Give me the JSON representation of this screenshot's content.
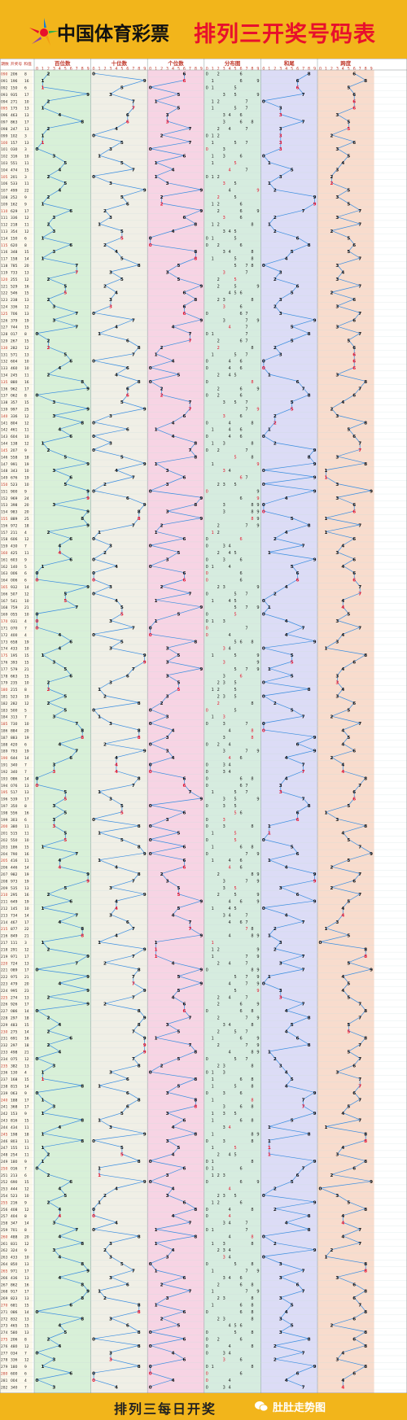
{
  "header": {
    "org_name": "中国体育彩票",
    "title": "排列三开奖号码表"
  },
  "footer": {
    "label": "排列三每日开奖",
    "brand": "肚肚走势图"
  },
  "colors": {
    "background": "#f4b400",
    "title": "#e8102c",
    "line": "#3a8de0",
    "highlight": "#e8102c",
    "panel_bai": "#d8f0d8",
    "panel_shi": "#f0efe6",
    "panel_ge": "#f7d4e4",
    "panel_fenbu": "#d6ecdf",
    "panel_hewei": "#dcdcf6",
    "panel_kuadu": "#f8dccd"
  },
  "icons": {
    "logo": "lottery-star-logo",
    "wechat": "wechat-icon"
  },
  "chart_data": {
    "type": "table",
    "columns": [
      "期数",
      "开奖号",
      "和值"
    ],
    "panels": [
      "百位数",
      "十位数",
      "个位数",
      "分布图",
      "和尾",
      "跨度"
    ],
    "digit_header": [
      "0",
      "1",
      "2",
      "3",
      "4",
      "5",
      "6",
      "7",
      "8",
      "9"
    ],
    "issue_start": 90,
    "rows": [
      [
        "090",
        "206",
        "8"
      ],
      [
        "091",
        "196",
        "16"
      ],
      [
        "092",
        "150",
        "6"
      ],
      [
        "093",
        "935",
        "17"
      ],
      [
        "094",
        "271",
        "10"
      ],
      [
        "095",
        "175",
        "13"
      ],
      [
        "096",
        "463",
        "13"
      ],
      [
        "097",
        "863",
        "17"
      ],
      [
        "098",
        "247",
        "13"
      ],
      [
        "099",
        "102",
        "3"
      ],
      [
        "100",
        "157",
        "13"
      ],
      [
        "101",
        "030",
        "3"
      ],
      [
        "102",
        "316",
        "10"
      ],
      [
        "103",
        "551",
        "11"
      ],
      [
        "104",
        "474",
        "15"
      ],
      [
        "105",
        "201",
        "3"
      ],
      [
        "106",
        "533",
        "11"
      ],
      [
        "107",
        "499",
        "22"
      ],
      [
        "108",
        "252",
        "9"
      ],
      [
        "109",
        "162",
        "9"
      ],
      [
        "110",
        "629",
        "17"
      ],
      [
        "111",
        "336",
        "12"
      ],
      [
        "112",
        "218",
        "11"
      ],
      [
        "113",
        "354",
        "12"
      ],
      [
        "114",
        "150",
        "6"
      ],
      [
        "115",
        "620",
        "8"
      ],
      [
        "116",
        "348",
        "15"
      ],
      [
        "117",
        "158",
        "14"
      ],
      [
        "118",
        "785",
        "20"
      ],
      [
        "119",
        "733",
        "13"
      ],
      [
        "120",
        "255",
        "12"
      ],
      [
        "121",
        "529",
        "16"
      ],
      [
        "122",
        "546",
        "15"
      ],
      [
        "123",
        "238",
        "13"
      ],
      [
        "124",
        "336",
        "12"
      ],
      [
        "125",
        "706",
        "13"
      ],
      [
        "126",
        "379",
        "19"
      ],
      [
        "127",
        "744",
        "15"
      ],
      [
        "128",
        "017",
        "8"
      ],
      [
        "129",
        "267",
        "15"
      ],
      [
        "130",
        "282",
        "12"
      ],
      [
        "131",
        "571",
        "13"
      ],
      [
        "132",
        "604",
        "10"
      ],
      [
        "133",
        "460",
        "10"
      ],
      [
        "134",
        "245",
        "11"
      ],
      [
        "135",
        "880",
        "16"
      ],
      [
        "136",
        "962",
        "17"
      ],
      [
        "137",
        "062",
        "8"
      ],
      [
        "138",
        "357",
        "15"
      ],
      [
        "139",
        "997",
        "25"
      ],
      [
        "140",
        "336",
        "12"
      ],
      [
        "141",
        "804",
        "12"
      ],
      [
        "142",
        "461",
        "11"
      ],
      [
        "143",
        "604",
        "10"
      ],
      [
        "144",
        "138",
        "12"
      ],
      [
        "145",
        "207",
        "9"
      ],
      [
        "146",
        "558",
        "18"
      ],
      [
        "147",
        "991",
        "19"
      ],
      [
        "148",
        "343",
        "10"
      ],
      [
        "149",
        "676",
        "19"
      ],
      [
        "150",
        "523",
        "10"
      ],
      [
        "151",
        "900",
        "9"
      ],
      [
        "152",
        "969",
        "24"
      ],
      [
        "153",
        "398",
        "20"
      ],
      [
        "154",
        "983",
        "20"
      ],
      [
        "155",
        "889",
        "25"
      ],
      [
        "156",
        "972",
        "18"
      ],
      [
        "157",
        "211",
        "4"
      ],
      [
        "158",
        "606",
        "12"
      ],
      [
        "159",
        "430",
        "7"
      ],
      [
        "160",
        "425",
        "11"
      ],
      [
        "161",
        "603",
        "9"
      ],
      [
        "162",
        "140",
        "5"
      ],
      [
        "163",
        "006",
        "6"
      ],
      [
        "164",
        "006",
        "6"
      ],
      [
        "165",
        "932",
        "14"
      ],
      [
        "166",
        "507",
        "12"
      ],
      [
        "167",
        "541",
        "10"
      ],
      [
        "168",
        "759",
        "21"
      ],
      [
        "169",
        "055",
        "10"
      ],
      [
        "170",
        "031",
        "4"
      ],
      [
        "171",
        "070",
        "7"
      ],
      [
        "172",
        "400",
        "4"
      ],
      [
        "173",
        "658",
        "19"
      ],
      [
        "174",
        "433",
        "10"
      ],
      [
        "175",
        "195",
        "15"
      ],
      [
        "176",
        "393",
        "15"
      ],
      [
        "177",
        "579",
        "21"
      ],
      [
        "178",
        "663",
        "15"
      ],
      [
        "179",
        "235",
        "10"
      ],
      [
        "180",
        "215",
        "8"
      ],
      [
        "181",
        "523",
        "10"
      ],
      [
        "182",
        "282",
        "12"
      ],
      [
        "183",
        "500",
        "5"
      ],
      [
        "184",
        "313",
        "7"
      ],
      [
        "185",
        "730",
        "10"
      ],
      [
        "186",
        "884",
        "20"
      ],
      [
        "187",
        "883",
        "19"
      ],
      [
        "188",
        "420",
        "6"
      ],
      [
        "189",
        "793",
        "19"
      ],
      [
        "190",
        "644",
        "14"
      ],
      [
        "191",
        "340",
        "7"
      ],
      [
        "192",
        "340",
        "7"
      ],
      [
        "193",
        "086",
        "14"
      ],
      [
        "194",
        "076",
        "13"
      ],
      [
        "195",
        "517",
        "13"
      ],
      [
        "196",
        "539",
        "17"
      ],
      [
        "197",
        "350",
        "8"
      ],
      [
        "198",
        "556",
        "16"
      ],
      [
        "199",
        "303",
        "6"
      ],
      [
        "200",
        "380",
        "11"
      ],
      [
        "201",
        "515",
        "11"
      ],
      [
        "202",
        "550",
        "10"
      ],
      [
        "203",
        "186",
        "15"
      ],
      [
        "204",
        "790",
        "16"
      ],
      [
        "205",
        "416",
        "11"
      ],
      [
        "206",
        "446",
        "14"
      ],
      [
        "207",
        "982",
        "19"
      ],
      [
        "208",
        "973",
        "19"
      ],
      [
        "209",
        "535",
        "13"
      ],
      [
        "210",
        "295",
        "16"
      ],
      [
        "211",
        "649",
        "19"
      ],
      [
        "212",
        "145",
        "10"
      ],
      [
        "213",
        "734",
        "14"
      ],
      [
        "214",
        "467",
        "17"
      ],
      [
        "215",
        "877",
        "22"
      ],
      [
        "216",
        "849",
        "21"
      ],
      [
        "217",
        "111",
        "3"
      ],
      [
        "218",
        "291",
        "12"
      ],
      [
        "219",
        "971",
        "17"
      ],
      [
        "220",
        "724",
        "13"
      ],
      [
        "221",
        "089",
        "17"
      ],
      [
        "222",
        "975",
        "21"
      ],
      [
        "223",
        "479",
        "20"
      ],
      [
        "224",
        "995",
        "23"
      ],
      [
        "225",
        "274",
        "13"
      ],
      [
        "226",
        "926",
        "17"
      ],
      [
        "227",
        "086",
        "14"
      ],
      [
        "228",
        "297",
        "18"
      ],
      [
        "229",
        "483",
        "15"
      ],
      [
        "230",
        "275",
        "14"
      ],
      [
        "231",
        "691",
        "16"
      ],
      [
        "232",
        "297",
        "18"
      ],
      [
        "233",
        "498",
        "21"
      ],
      [
        "234",
        "075",
        "12"
      ],
      [
        "235",
        "382",
        "13"
      ],
      [
        "236",
        "130",
        "4"
      ],
      [
        "237",
        "168",
        "15"
      ],
      [
        "238",
        "815",
        "14"
      ],
      [
        "239",
        "063",
        "9"
      ],
      [
        "240",
        "188",
        "17"
      ],
      [
        "241",
        "368",
        "17"
      ],
      [
        "242",
        "153",
        "9"
      ],
      [
        "243",
        "816",
        "15"
      ],
      [
        "244",
        "434",
        "11"
      ],
      [
        "245",
        "198",
        "18"
      ],
      [
        "246",
        "803",
        "11"
      ],
      [
        "247",
        "155",
        "11"
      ],
      [
        "248",
        "254",
        "11"
      ],
      [
        "249",
        "180",
        "9"
      ],
      [
        "250",
        "016",
        "7"
      ],
      [
        "251",
        "213",
        "6"
      ],
      [
        "252",
        "690",
        "15"
      ],
      [
        "253",
        "444",
        "12"
      ],
      [
        "254",
        "523",
        "10"
      ],
      [
        "255",
        "216",
        "9"
      ],
      [
        "256",
        "408",
        "12"
      ],
      [
        "257",
        "404",
        "8"
      ],
      [
        "258",
        "347",
        "14"
      ],
      [
        "259",
        "701",
        "8"
      ],
      [
        "260",
        "488",
        "20"
      ],
      [
        "261",
        "831",
        "12"
      ],
      [
        "262",
        "324",
        "9"
      ],
      [
        "263",
        "433",
        "10"
      ],
      [
        "264",
        "850",
        "13"
      ],
      [
        "265",
        "971",
        "17"
      ],
      [
        "266",
        "436",
        "13"
      ],
      [
        "267",
        "862",
        "16"
      ],
      [
        "268",
        "917",
        "17"
      ],
      [
        "269",
        "823",
        "13"
      ],
      [
        "270",
        "681",
        "15"
      ],
      [
        "271",
        "086",
        "14"
      ],
      [
        "272",
        "832",
        "13"
      ],
      [
        "273",
        "465",
        "15"
      ],
      [
        "274",
        "580",
        "13"
      ],
      [
        "275",
        "206",
        "8"
      ],
      [
        "276",
        "480",
        "12"
      ],
      [
        "277",
        "034",
        "7"
      ],
      [
        "278",
        "336",
        "12"
      ],
      [
        "279",
        "180",
        "9"
      ],
      [
        "280",
        "600",
        "6"
      ],
      [
        "281",
        "004",
        "4"
      ],
      [
        "282",
        "340",
        "7"
      ]
    ]
  }
}
